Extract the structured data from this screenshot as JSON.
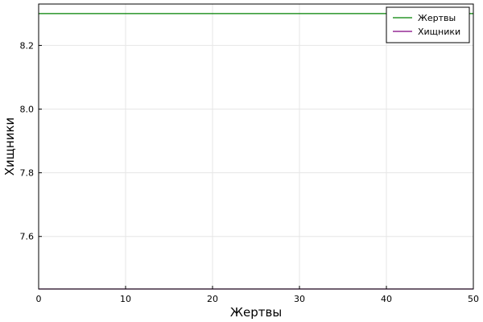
{
  "chart_data": {
    "type": "line",
    "xlabel": "Жертвы",
    "ylabel": "Хищники",
    "xlim": [
      0,
      50
    ],
    "ylim": [
      7.435,
      8.33
    ],
    "x_ticks": [
      0,
      10,
      20,
      30,
      40,
      50
    ],
    "y_ticks": [
      7.6,
      7.8,
      8.0,
      8.2
    ],
    "grid": true,
    "legend_position": "top-right",
    "series": [
      {
        "name": "Жертвы",
        "color": "#008000",
        "x": [
          0,
          50
        ],
        "values": [
          8.3,
          8.3
        ]
      },
      {
        "name": "Хищники",
        "color": "#800080",
        "x": [
          0,
          50
        ],
        "values": [
          7.435,
          7.435
        ]
      }
    ]
  }
}
